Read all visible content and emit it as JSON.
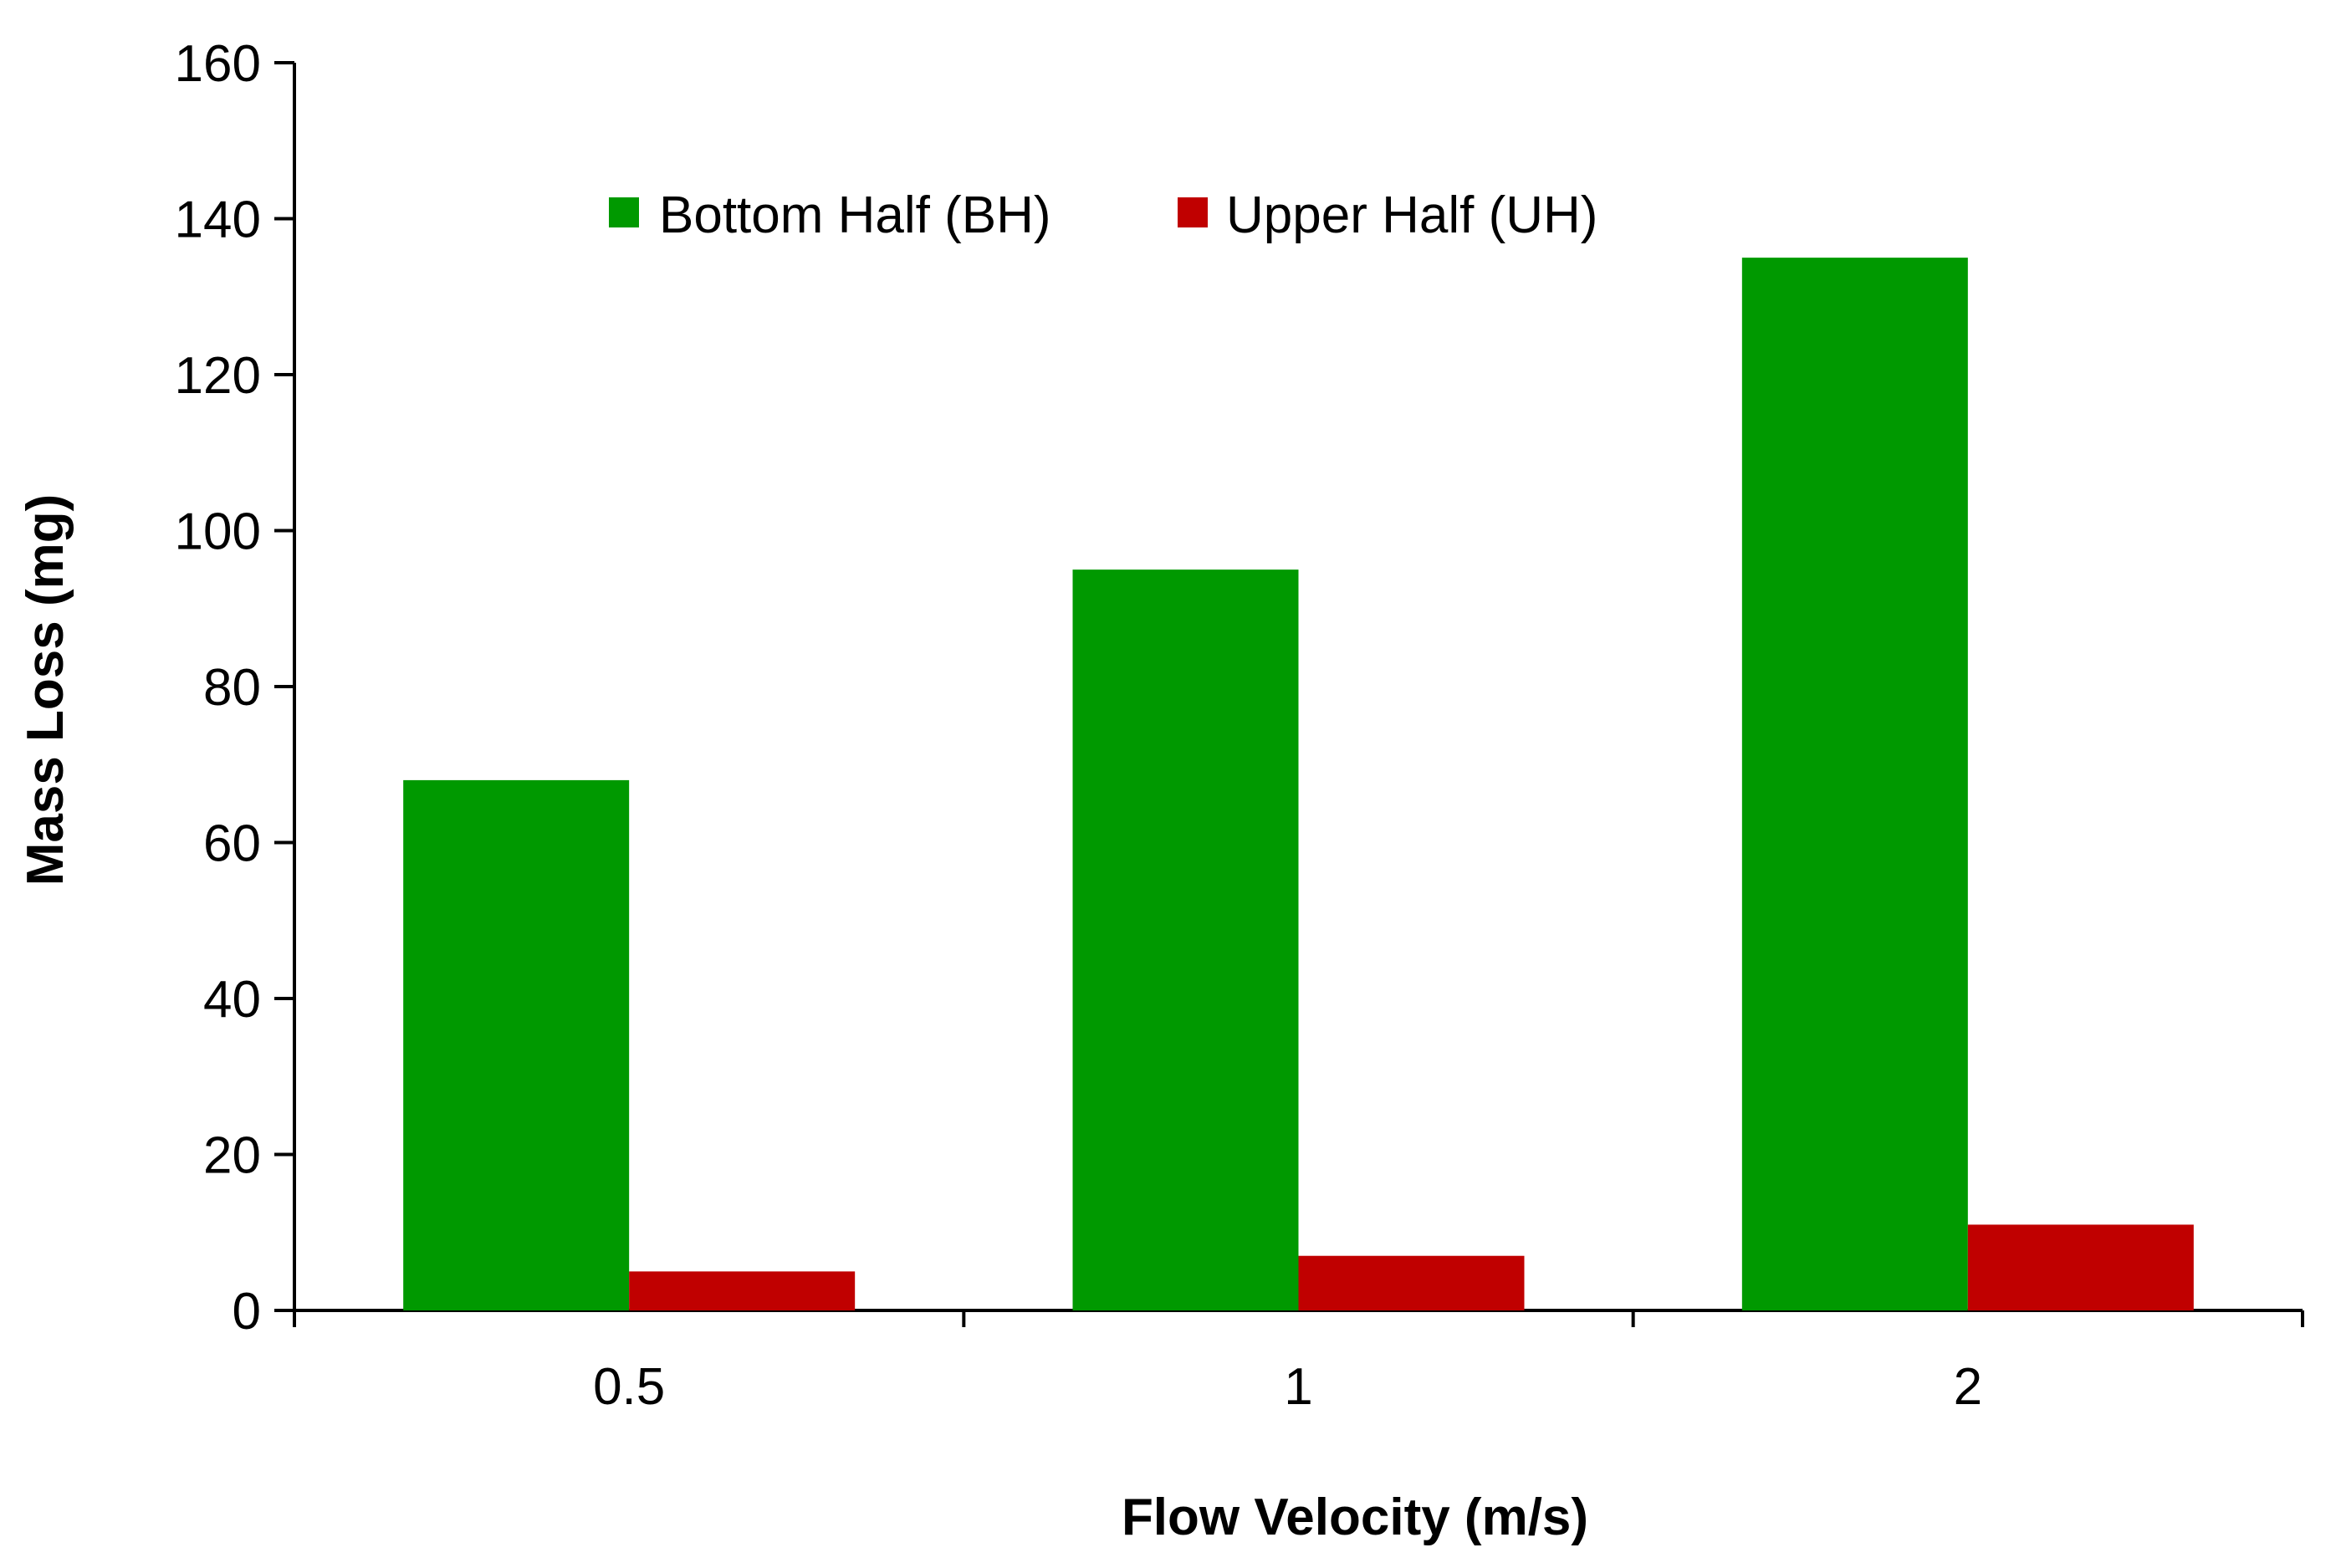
{
  "chart_data": {
    "type": "bar",
    "title": "",
    "xlabel": "Flow Velocity (m/s)",
    "ylabel": "Mass Loss (mg)",
    "categories": [
      "0.5",
      "1",
      "2"
    ],
    "series": [
      {
        "name": "Bottom Half (BH)",
        "color": "#009900",
        "values": [
          68,
          95,
          135
        ]
      },
      {
        "name": "Upper Half (UH)",
        "color": "#C00000",
        "values": [
          5,
          7,
          11
        ]
      }
    ],
    "ylim": [
      0,
      160
    ],
    "yticks": [
      0,
      20,
      40,
      60,
      80,
      100,
      120,
      140,
      160
    ],
    "grid": false,
    "legend_position": "top-center"
  }
}
